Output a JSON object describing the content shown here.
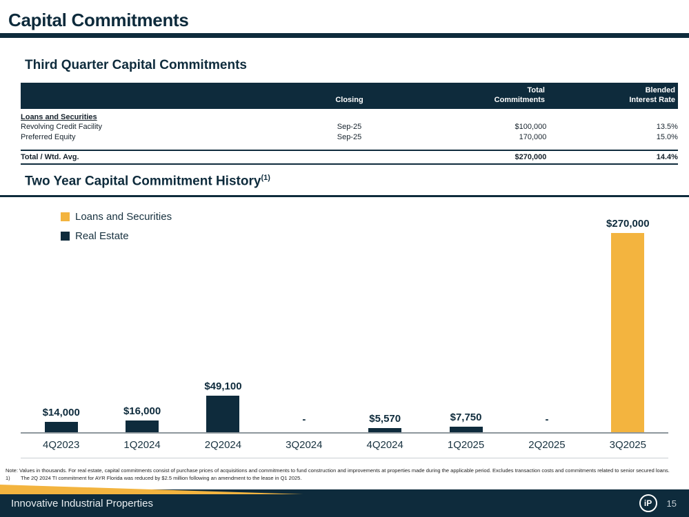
{
  "page": {
    "title": "Capital Commitments",
    "footer": {
      "brand": "Innovative Industrial Properties",
      "page_number": "15",
      "logo_text": "iP"
    }
  },
  "colors": {
    "navy": "#0e2b3c",
    "gold": "#f3b43f"
  },
  "commitments_section": {
    "heading": "Third Quarter Capital Commitments",
    "table": {
      "headers": {
        "closing": "Closing",
        "total_line1": "Total",
        "total_line2": "Commitments",
        "rate_line1": "Blended",
        "rate_line2": "Interest Rate"
      },
      "group_label": "Loans and Securities",
      "rows": [
        {
          "label": "Revolving Credit Facility",
          "closing": "Sep-25",
          "total": "$100,000",
          "rate": "13.5%"
        },
        {
          "label": "Preferred Equity",
          "closing": "Sep-25",
          "total": "170,000",
          "rate": "15.0%"
        }
      ],
      "total_row": {
        "label": "Total / Wtd. Avg.",
        "total": "$270,000",
        "rate": "14.4%"
      }
    }
  },
  "history_section": {
    "heading": "Two Year Capital Commitment History",
    "heading_footnote": "(1)",
    "legend": [
      {
        "label": "Loans and Securities",
        "color": "#f3b43f"
      },
      {
        "label": "Real Estate",
        "color": "#0e2b3c"
      }
    ]
  },
  "chart_data": {
    "type": "bar",
    "title": "Two Year Capital Commitment History",
    "categories": [
      "4Q2023",
      "1Q2024",
      "2Q2024",
      "3Q2024",
      "4Q2024",
      "1Q2025",
      "2Q2025",
      "3Q2025"
    ],
    "series": [
      {
        "name": "Real Estate",
        "color": "#0e2b3c",
        "values": [
          14000,
          16000,
          49100,
          0,
          5570,
          7750,
          0,
          0
        ]
      },
      {
        "name": "Loans and Securities",
        "color": "#f3b43f",
        "values": [
          0,
          0,
          0,
          0,
          0,
          0,
          0,
          270000
        ]
      }
    ],
    "bar_labels": [
      "$14,000",
      "$16,000",
      "$49,100",
      "-",
      "$5,570",
      "$7,750",
      "-",
      "$270,000"
    ],
    "ylim": [
      0,
      280000
    ],
    "units": "thousands of dollars",
    "grid": false,
    "legend_position": "top-left"
  },
  "footnotes": {
    "note": "Note: Values in thousands. For real estate, capital commitments consist of purchase prices of acquisitions and commitments to fund construction and improvements at properties made during the applicable period. Excludes transaction costs and commitments related to senior secured loans.",
    "fn1_marker": "1)",
    "fn1_text": "The 2Q 2024 TI commitment for AYR Florida was reduced by $2.5 million following an amendment to the lease in Q1 2025."
  }
}
